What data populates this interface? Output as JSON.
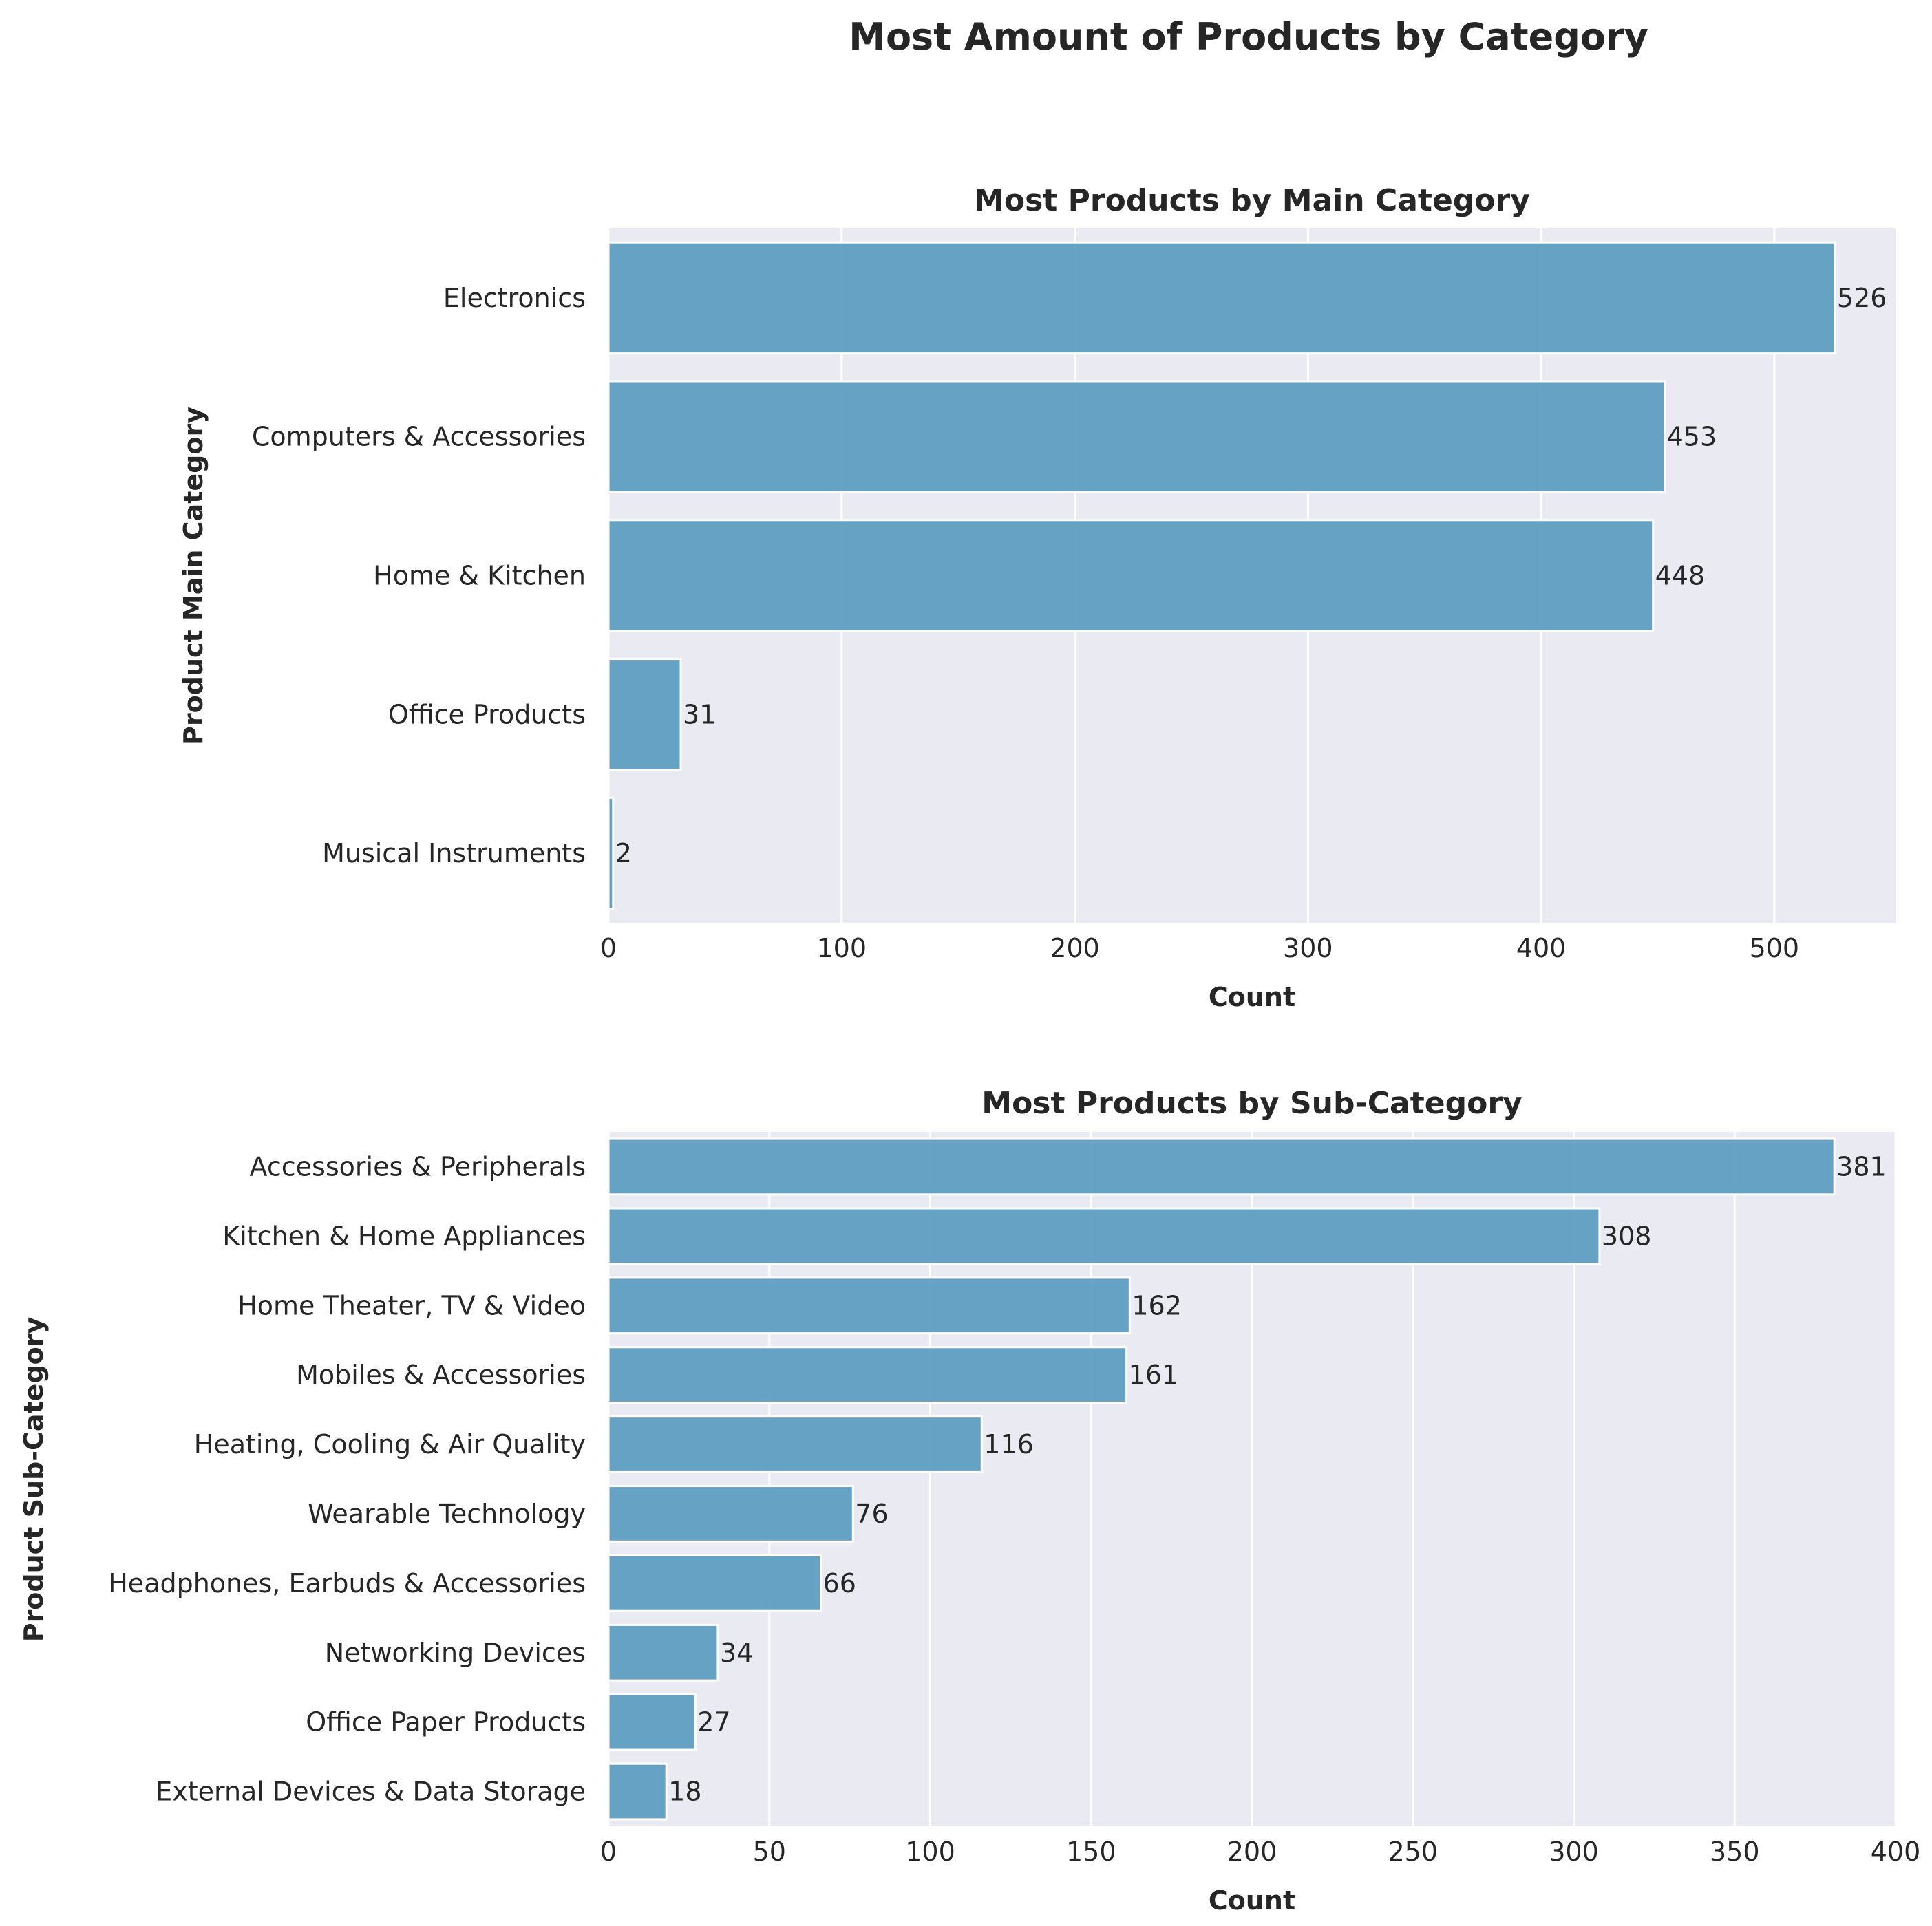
{
  "figure_title": "Most Amount of Products by Category",
  "colors": {
    "bar": "#5f9ec1",
    "plot_background": "#eaeaf2",
    "grid": "#ffffff",
    "text": "#262626"
  },
  "chart_data": [
    {
      "type": "bar",
      "orientation": "horizontal",
      "title": "Most Products by Main Category",
      "xlabel": "Count",
      "ylabel": "Product Main Category",
      "categories": [
        "Electronics",
        "Computers & Accessories",
        "Home & Kitchen",
        "Office Products",
        "Musical Instruments"
      ],
      "values": [
        526,
        453,
        448,
        31,
        2
      ],
      "xlim": [
        0,
        552
      ],
      "xticks": [
        0,
        100,
        200,
        300,
        400,
        500
      ],
      "grid": true
    },
    {
      "type": "bar",
      "orientation": "horizontal",
      "title": "Most Products by Sub-Category",
      "xlabel": "Count",
      "ylabel": "Product Sub-Category",
      "categories": [
        "Accessories & Peripherals",
        "Kitchen & Home Appliances",
        "Home Theater, TV & Video",
        "Mobiles & Accessories",
        "Heating, Cooling & Air Quality",
        "Wearable Technology",
        "Headphones, Earbuds & Accessories",
        "Networking Devices",
        "Office Paper Products",
        "External Devices & Data Storage"
      ],
      "values": [
        381,
        308,
        162,
        161,
        116,
        76,
        66,
        34,
        27,
        18
      ],
      "xlim": [
        0,
        400
      ],
      "xticks": [
        0,
        50,
        100,
        150,
        200,
        250,
        300,
        350,
        400
      ],
      "grid": true
    }
  ]
}
